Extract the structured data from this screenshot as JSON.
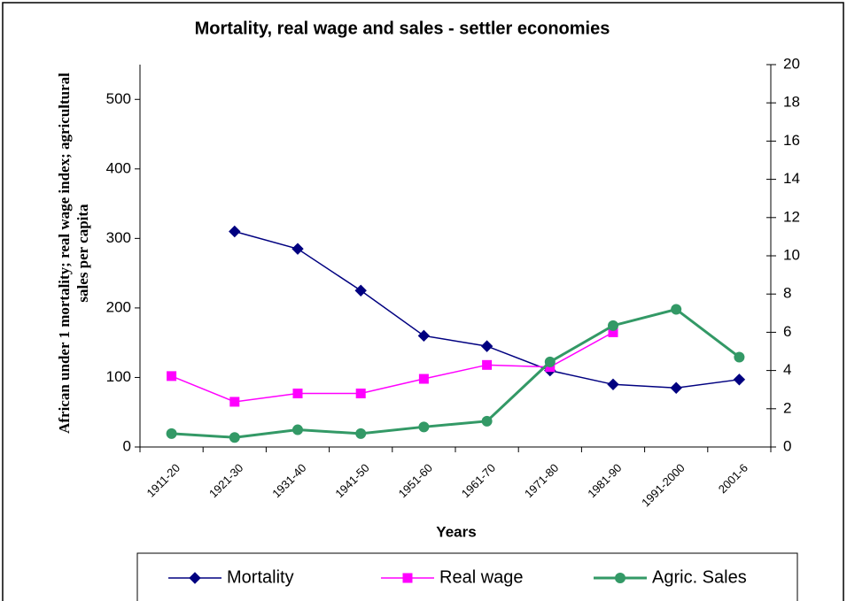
{
  "chart_data": {
    "type": "line",
    "title": "Mortality, real wage and sales - settler economies",
    "x_label": "Years",
    "y_label": "African under 1 mortality; real wage index; agricultural sales per capita",
    "categories": [
      "1911-20",
      "1921-30",
      "1931-40",
      "1941-50",
      "1951-60",
      "1961-70",
      "1971-80",
      "1981-90",
      "1991-2000",
      "2001-6"
    ],
    "series": [
      {
        "name": "Mortality",
        "color": "#000080",
        "marker": "diamond",
        "values": [
          null,
          310,
          285,
          225,
          160,
          145,
          110,
          90,
          85,
          97
        ]
      },
      {
        "name": "Real wage",
        "color": "#ff00ff",
        "marker": "square",
        "values": [
          102,
          65,
          77,
          77,
          98,
          118,
          115,
          165,
          null,
          null
        ]
      },
      {
        "name": "Agric. Sales",
        "color": "#339966",
        "marker": "circle",
        "axis": "y2",
        "values": [
          0.7,
          0.5,
          0.9,
          0.7,
          1.05,
          1.35,
          4.45,
          6.35,
          7.2,
          4.7
        ]
      }
    ],
    "ylim": [
      0,
      550
    ],
    "yticks": [
      0,
      100,
      200,
      300,
      400,
      500
    ],
    "y2lim": [
      0,
      20
    ],
    "y2ticks": [
      0,
      2,
      4,
      6,
      8,
      10,
      12,
      14,
      16,
      18,
      20
    ],
    "grid": false,
    "legend": "bottom"
  }
}
